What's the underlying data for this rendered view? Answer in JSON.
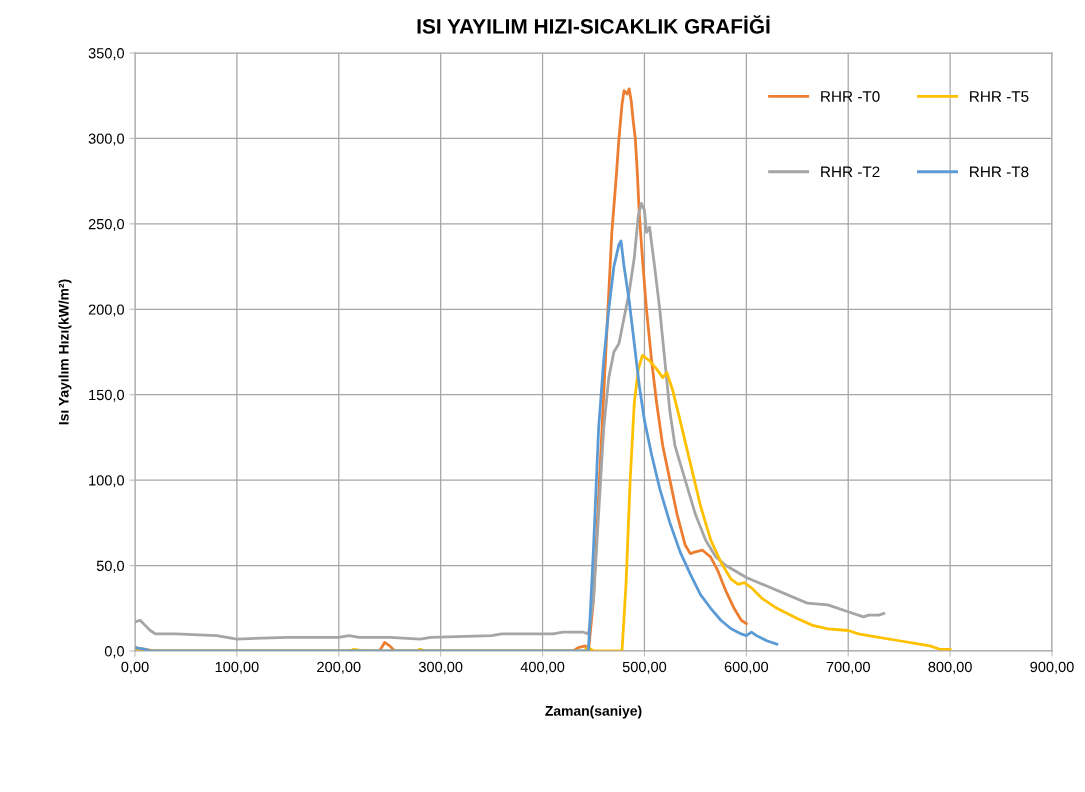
{
  "chart_data": {
    "type": "line",
    "title": "ISI YAYILIM HIZI-SICAKLIK GRAFİĞİ",
    "xlabel": "Zaman(saniye)",
    "ylabel": "Isı Yayılım Hızı(kW/m²)",
    "xlim": [
      0,
      900
    ],
    "xticks": [
      {
        "value": 0,
        "label": "0,00"
      },
      {
        "value": 100,
        "label": "100,00"
      },
      {
        "value": 200,
        "label": "200,00"
      },
      {
        "value": 300,
        "label": "300,00"
      },
      {
        "value": 400,
        "label": "400,00"
      },
      {
        "value": 500,
        "label": "500,00"
      },
      {
        "value": 600,
        "label": "600,00"
      },
      {
        "value": 700,
        "label": "700,00"
      },
      {
        "value": 800,
        "label": "800,00"
      },
      {
        "value": 900,
        "label": "900,00"
      }
    ],
    "ylim": [
      0,
      350
    ],
    "yticks": [
      {
        "value": 0,
        "label": "0,0"
      },
      {
        "value": 50,
        "label": "50,0"
      },
      {
        "value": 100,
        "label": "100,0"
      },
      {
        "value": 150,
        "label": "150,0"
      },
      {
        "value": 200,
        "label": "200,0"
      },
      {
        "value": 250,
        "label": "250,0"
      },
      {
        "value": 300,
        "label": "300,0"
      },
      {
        "value": 350,
        "label": "350,0"
      }
    ],
    "grid": true,
    "legend": "top right",
    "marker": "none",
    "line_style": "solid",
    "series": [
      {
        "name": "RHR -T0",
        "color": "#ed7d31",
        "x": [
          0,
          10,
          20,
          80,
          240,
          245,
          250,
          255,
          430,
          435,
          442,
          445,
          450,
          455,
          460,
          465,
          468,
          472,
          475,
          478,
          480,
          483,
          485,
          487,
          489,
          491,
          493,
          495,
          498,
          502,
          507,
          512,
          518,
          525,
          532,
          540,
          545,
          550,
          557,
          565,
          572,
          580,
          588,
          595,
          600
        ],
        "values": [
          2,
          1,
          0,
          0,
          0,
          5,
          3,
          0,
          0,
          2,
          3,
          0,
          30,
          90,
          150,
          210,
          245,
          275,
          300,
          320,
          328,
          326,
          329,
          322,
          310,
          300,
          280,
          255,
          230,
          200,
          170,
          145,
          120,
          100,
          80,
          62,
          57,
          58,
          59,
          55,
          47,
          35,
          25,
          18,
          16
        ]
      },
      {
        "name": "RHR -T2",
        "color": "#a5a5a5",
        "x": [
          0,
          5,
          10,
          15,
          20,
          40,
          80,
          100,
          150,
          200,
          210,
          220,
          250,
          280,
          290,
          350,
          360,
          390,
          410,
          420,
          440,
          445,
          450,
          455,
          460,
          465,
          470,
          475,
          480,
          485,
          490,
          494,
          497,
          500,
          502,
          505,
          510,
          515,
          520,
          525,
          530,
          540,
          550,
          560,
          570,
          580,
          600,
          620,
          640,
          660,
          680,
          700,
          715,
          720,
          730,
          735
        ],
        "values": [
          17,
          18,
          15,
          12,
          10,
          10,
          9,
          7,
          8,
          8,
          9,
          8,
          8,
          7,
          8,
          9,
          10,
          10,
          10,
          11,
          11,
          10,
          30,
          80,
          130,
          160,
          175,
          180,
          195,
          210,
          230,
          255,
          262,
          258,
          245,
          248,
          225,
          200,
          170,
          140,
          120,
          100,
          80,
          65,
          55,
          50,
          43,
          38,
          33,
          28,
          27,
          23,
          20,
          21,
          21,
          22
        ]
      },
      {
        "name": "RHR -T5",
        "color": "#ffc000",
        "x": [
          0,
          20,
          210,
          215,
          225,
          275,
          280,
          285,
          440,
          445,
          450,
          478,
          482,
          486,
          490,
          494,
          498,
          505,
          512,
          518,
          522,
          528,
          535,
          545,
          555,
          565,
          575,
          585,
          592,
          598,
          605,
          615,
          630,
          650,
          665,
          680,
          700,
          710,
          730,
          750,
          770,
          780,
          790,
          800
        ],
        "values": [
          1,
          0,
          0,
          1,
          0,
          0,
          1,
          0,
          0,
          2,
          0,
          0,
          40,
          100,
          145,
          165,
          173,
          170,
          165,
          160,
          163,
          152,
          135,
          110,
          85,
          65,
          52,
          42,
          39,
          40,
          37,
          31,
          25,
          19,
          15,
          13,
          12,
          10,
          8,
          6,
          4,
          3,
          1,
          1
        ]
      },
      {
        "name": "RHR -T8",
        "color": "#5b9bd5",
        "x": [
          0,
          10,
          15,
          440,
          445,
          450,
          455,
          460,
          465,
          470,
          475,
          477,
          480,
          485,
          490,
          495,
          500,
          507,
          515,
          525,
          535,
          545,
          555,
          565,
          575,
          585,
          595,
          600,
          605,
          610,
          620,
          630
        ],
        "values": [
          2,
          1,
          0,
          0,
          0,
          60,
          130,
          170,
          200,
          225,
          238,
          240,
          225,
          205,
          180,
          155,
          135,
          115,
          95,
          75,
          58,
          45,
          33,
          25,
          18,
          13,
          10,
          9,
          11,
          9,
          6,
          4
        ]
      }
    ]
  }
}
